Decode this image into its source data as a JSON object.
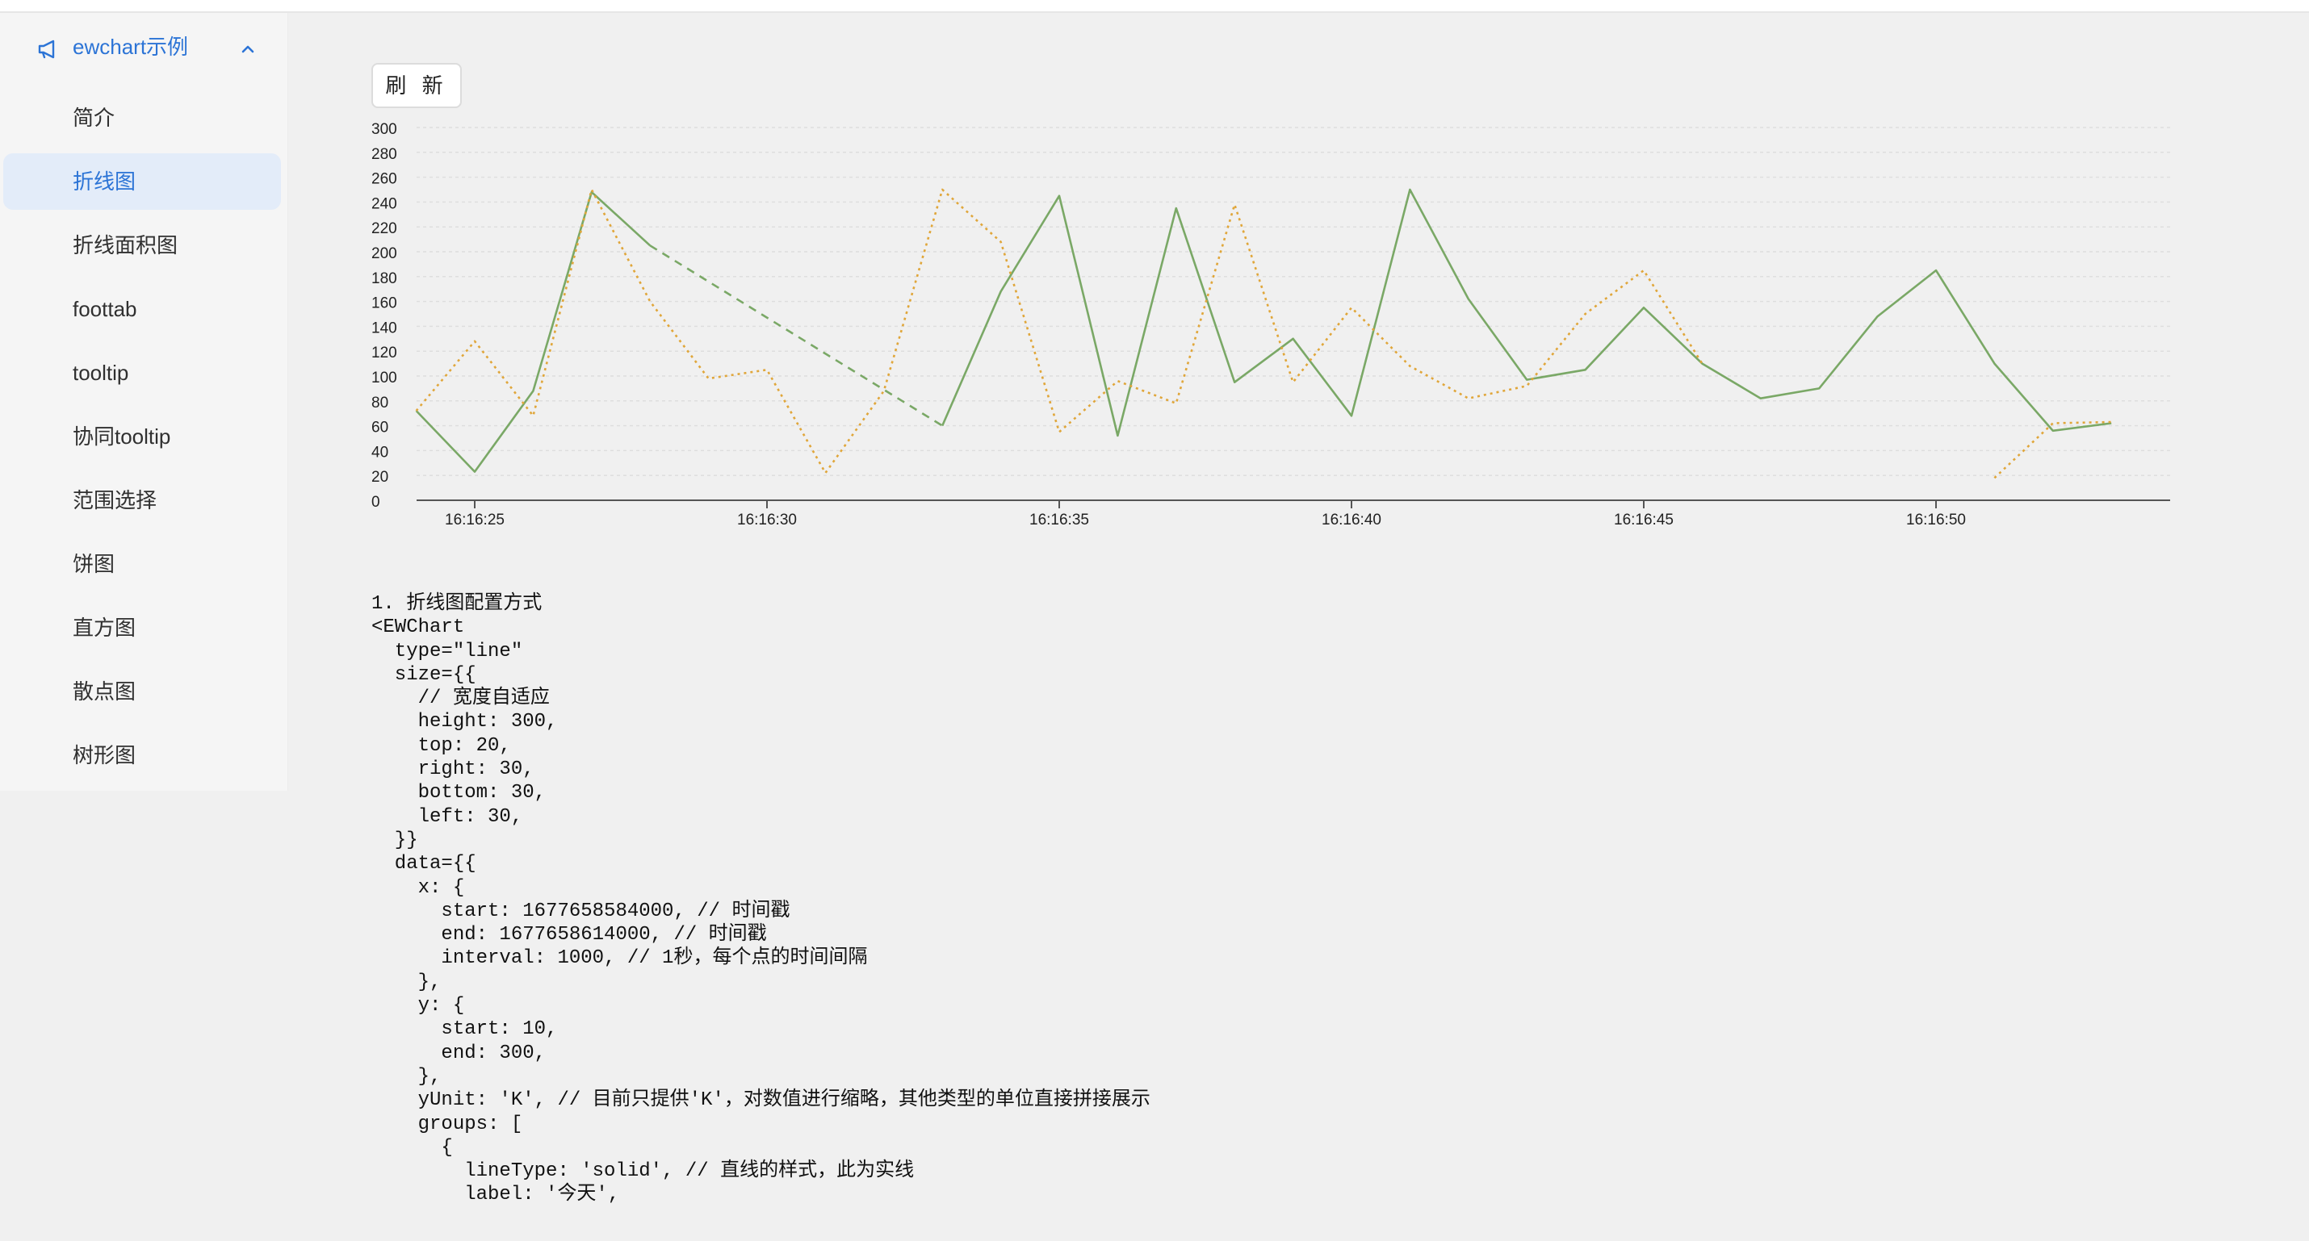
{
  "sidebar": {
    "header": {
      "title": "ewchart示例",
      "icon": "megaphone-icon",
      "expanded": true
    },
    "items": [
      {
        "label": "简介",
        "active": false
      },
      {
        "label": "折线图",
        "active": true
      },
      {
        "label": "折线面积图",
        "active": false
      },
      {
        "label": "foottab",
        "active": false
      },
      {
        "label": "tooltip",
        "active": false
      },
      {
        "label": "协同tooltip",
        "active": false
      },
      {
        "label": "范围选择",
        "active": false
      },
      {
        "label": "饼图",
        "active": false
      },
      {
        "label": "直方图",
        "active": false
      },
      {
        "label": "散点图",
        "active": false
      },
      {
        "label": "树形图",
        "active": false
      }
    ]
  },
  "toolbar": {
    "refresh_label": "刷 新"
  },
  "colors": {
    "accent": "#2c74d6",
    "series_green": "#7aa866",
    "series_orange": "#e0a63a"
  },
  "chart_data": {
    "type": "line",
    "ylim": [
      0,
      300
    ],
    "y_ticks": [
      "0",
      "20",
      "40",
      "60",
      "80",
      "100",
      "120",
      "140",
      "160",
      "180",
      "200",
      "220",
      "240",
      "260",
      "280",
      "300"
    ],
    "x_tick_labels": [
      "16:16:25",
      "16:16:30",
      "16:16:35",
      "16:16:40",
      "16:16:45",
      "16:16:50"
    ],
    "x_tick_seconds": [
      25,
      30,
      35,
      40,
      45,
      50
    ],
    "x_range_seconds": [
      24,
      54
    ],
    "grid": true,
    "series": [
      {
        "color": "#7aa866",
        "style": "solid",
        "points": [
          [
            24,
            72
          ],
          [
            25,
            23
          ],
          [
            26,
            88
          ],
          [
            27,
            248
          ],
          [
            28,
            205
          ],
          [
            33,
            60
          ],
          [
            34,
            168
          ],
          [
            35,
            245
          ],
          [
            36,
            52
          ],
          [
            37,
            235
          ],
          [
            38,
            95
          ],
          [
            39,
            130
          ],
          [
            40,
            68
          ],
          [
            41,
            250
          ],
          [
            42,
            162
          ],
          [
            43,
            97
          ],
          [
            44,
            105
          ],
          [
            45,
            155
          ],
          [
            46,
            110
          ],
          [
            47,
            82
          ],
          [
            48,
            90
          ],
          [
            49,
            148
          ],
          [
            50,
            185
          ],
          [
            51,
            110
          ],
          [
            52,
            56
          ],
          [
            53,
            62
          ]
        ],
        "gap_segments": [
          [
            [
              28,
              205
            ],
            [
              33,
              60
            ]
          ]
        ]
      },
      {
        "color": "#e0a63a",
        "style": "dotted",
        "points": [
          [
            24,
            72
          ],
          [
            25,
            128
          ],
          [
            26,
            68
          ],
          [
            27,
            250
          ],
          [
            28,
            160
          ],
          [
            29,
            98
          ],
          [
            30,
            105
          ],
          [
            31,
            22
          ],
          [
            32,
            88
          ],
          [
            33,
            250
          ],
          [
            34,
            208
          ],
          [
            35,
            55
          ],
          [
            36,
            96
          ],
          [
            37,
            78
          ],
          [
            38,
            238
          ],
          [
            39,
            95
          ],
          [
            40,
            155
          ],
          [
            41,
            108
          ],
          [
            42,
            82
          ],
          [
            43,
            92
          ],
          [
            44,
            150
          ],
          [
            45,
            185
          ],
          [
            46,
            110
          ]
        ],
        "tail_points": [
          [
            51,
            18
          ],
          [
            52,
            62
          ],
          [
            53,
            63
          ]
        ]
      }
    ]
  },
  "code": {
    "lines": [
      "1. 折线图配置方式",
      "<EWChart",
      "  type=\"line\"",
      "  size={{",
      "    // 宽度自适应",
      "    height: 300,",
      "    top: 20,",
      "    right: 30,",
      "    bottom: 30,",
      "    left: 30,",
      "  }}",
      "  data={{",
      "    x: {",
      "      start: 1677658584000, // 时间戳",
      "      end: 1677658614000, // 时间戳",
      "      interval: 1000, // 1秒，每个点的时间间隔",
      "    },",
      "    y: {",
      "      start: 10,",
      "      end: 300,",
      "    },",
      "    yUnit: 'K', // 目前只提供'K'，对数值进行缩略，其他类型的单位直接拼接展示",
      "    groups: [",
      "      {",
      "        lineType: 'solid', // 直线的样式，此为实线",
      "        label: '今天',"
    ]
  }
}
